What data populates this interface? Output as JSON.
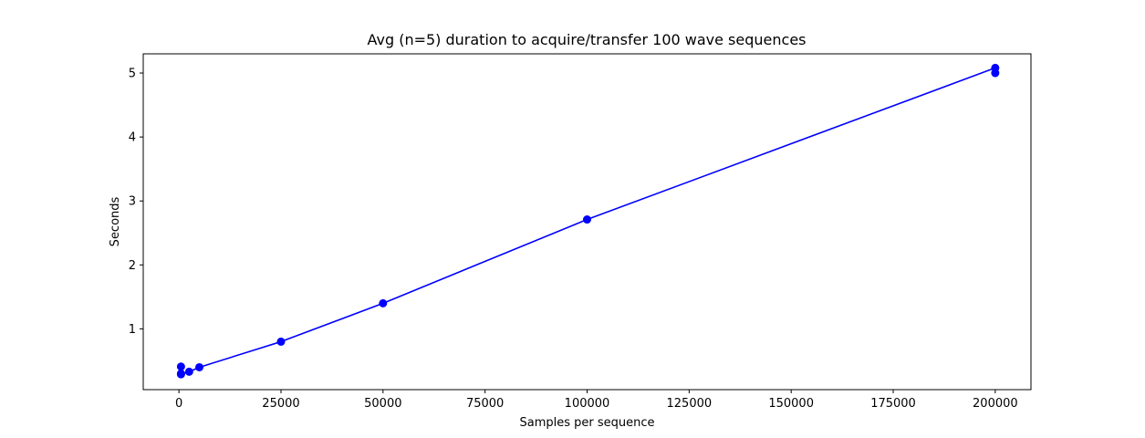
{
  "chart_data": {
    "type": "line",
    "title": "Avg (n=5) duration to acquire/transfer 100 wave sequences",
    "xlabel": "Samples per sequence",
    "ylabel": "Seconds",
    "xlim": [
      -8750,
      208750
    ],
    "ylim": [
      0.05,
      5.3
    ],
    "xticks": [
      0,
      25000,
      50000,
      75000,
      100000,
      125000,
      150000,
      175000,
      200000
    ],
    "xtick_labels": [
      "0",
      "25000",
      "50000",
      "75000",
      "100000",
      "125000",
      "150000",
      "175000",
      "200000"
    ],
    "yticks": [
      1,
      2,
      3,
      4,
      5
    ],
    "ytick_labels": [
      "1",
      "2",
      "3",
      "4",
      "5"
    ],
    "grid": false,
    "series": [
      {
        "color": "#0000ff",
        "marker": "circle",
        "x": [
          500,
          500,
          500,
          2500,
          5000,
          25000,
          50000,
          100000,
          200000,
          200000
        ],
        "y": [
          0.41,
          0.3,
          0.29,
          0.33,
          0.4,
          0.8,
          1.4,
          2.71,
          5.08,
          5.0
        ]
      }
    ]
  }
}
